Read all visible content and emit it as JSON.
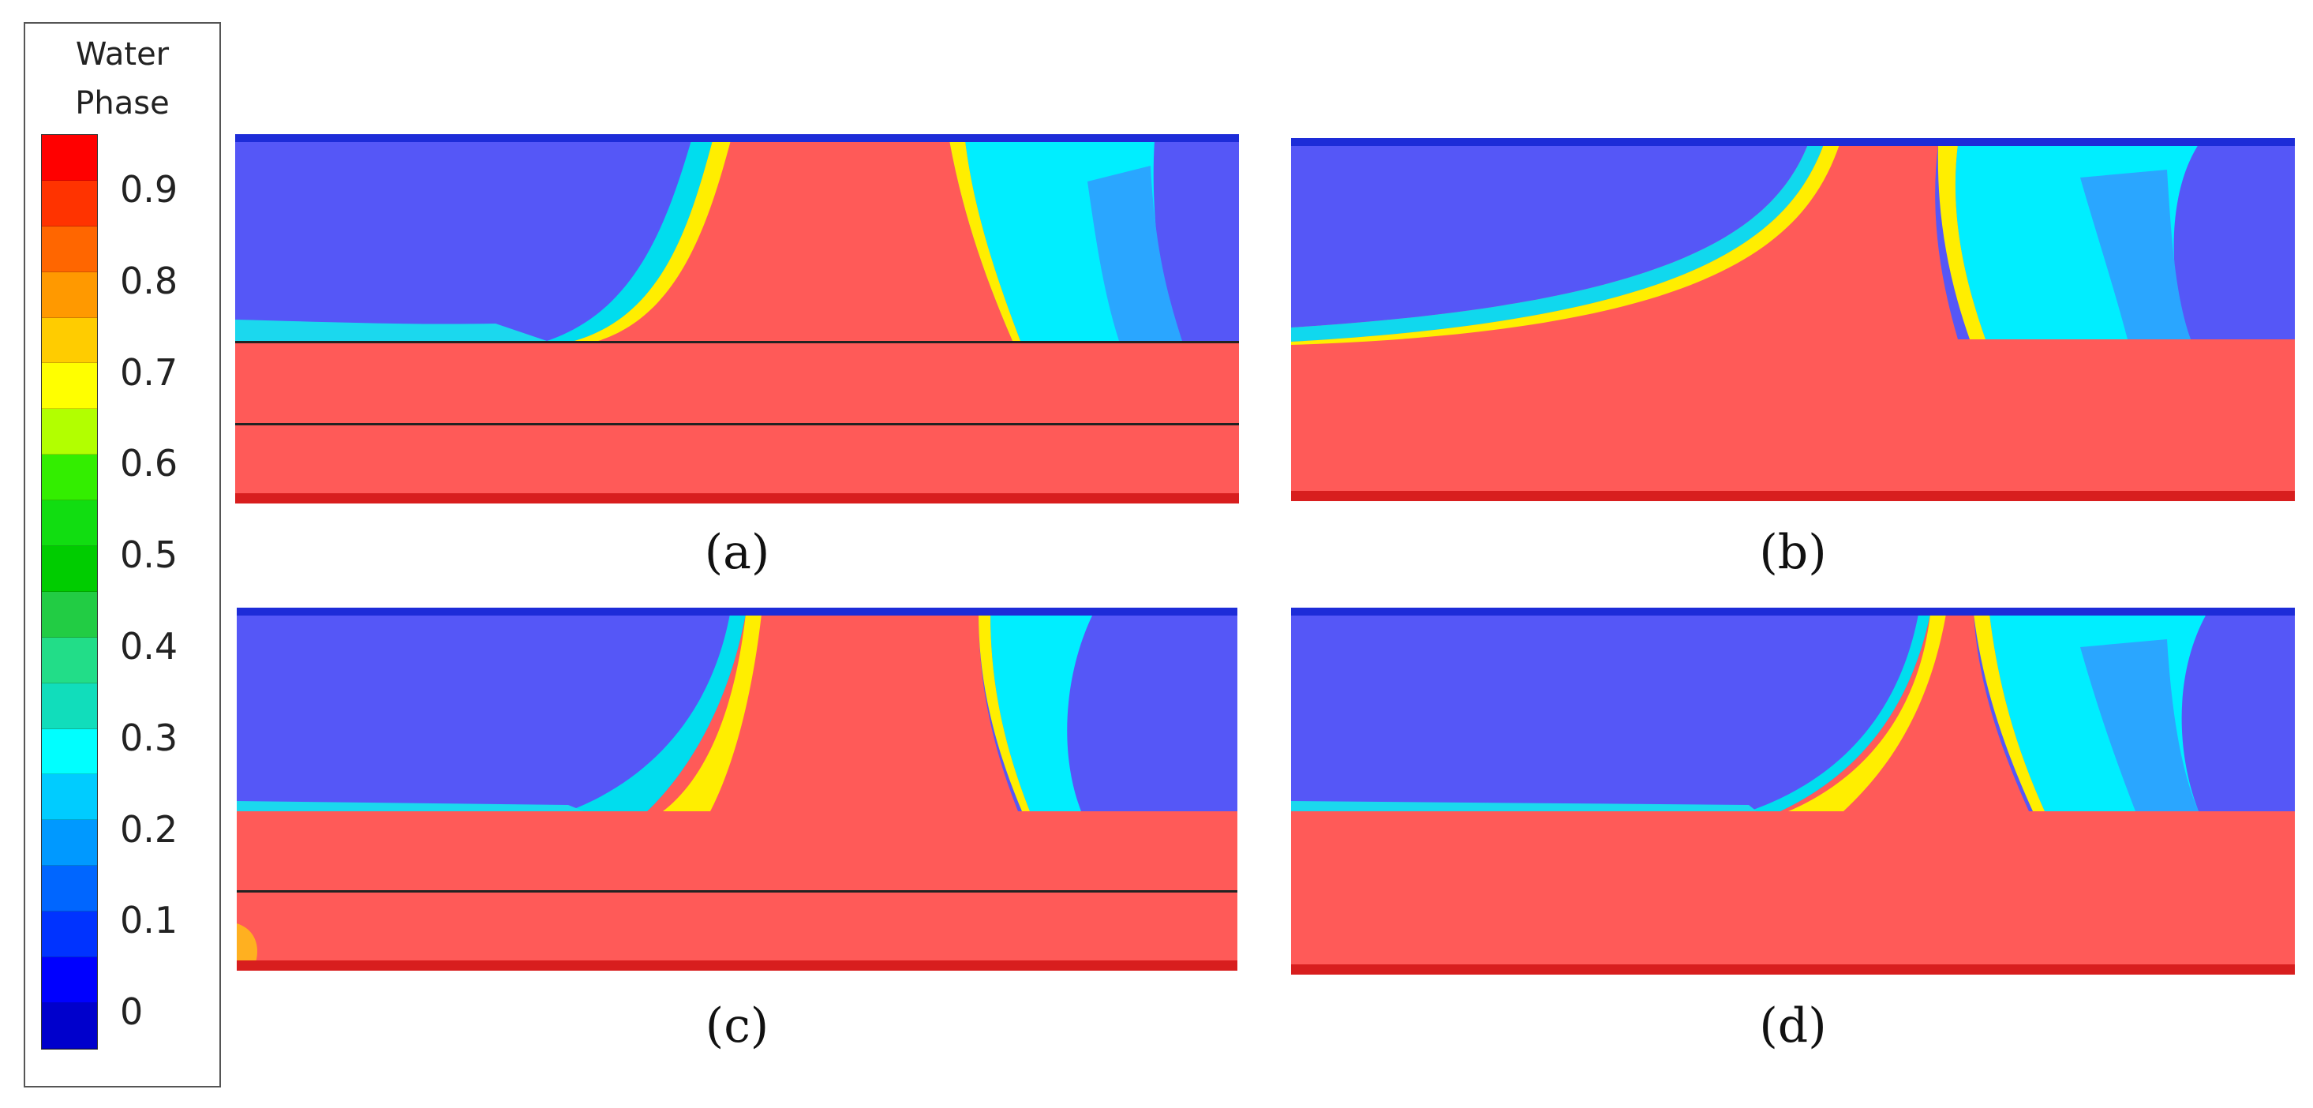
{
  "legend": {
    "title": "Water\nPhase",
    "ticks": [
      "0.9",
      "0.8",
      "0.7",
      "0.6",
      "0.5",
      "0.4",
      "0.3",
      "0.2",
      "0.1",
      "0"
    ],
    "colors": [
      "#ff0000",
      "#ff3300",
      "#ff6600",
      "#ff9900",
      "#ffcc00",
      "#ffff00",
      "#b2ff00",
      "#33ee00",
      "#11dd11",
      "#00cc00",
      "#22cc44",
      "#22dd88",
      "#11ddbb",
      "#00ffff",
      "#00ccff",
      "#0099ff",
      "#0066ff",
      "#0033ff",
      "#0000ff",
      "#0000cc"
    ]
  },
  "panels": [
    {
      "id": "a",
      "caption": "(a)",
      "air_color": "#5557f7",
      "water_color": "#ff5a58"
    },
    {
      "id": "b",
      "caption": "(b)",
      "air_color": "#5557f7",
      "water_color": "#ff5a58"
    },
    {
      "id": "c",
      "caption": "(c)",
      "air_color": "#5557f7",
      "water_color": "#ff5a58"
    },
    {
      "id": "d",
      "caption": "(d)",
      "air_color": "#5557f7",
      "water_color": "#ff5a58"
    }
  ]
}
